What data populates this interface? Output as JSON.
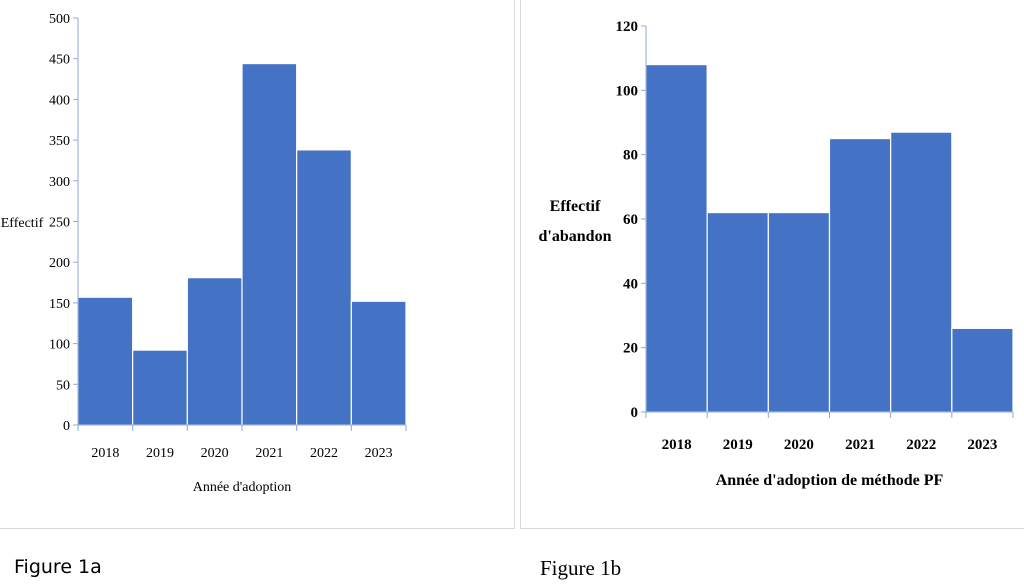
{
  "chart_data": [
    {
      "type": "bar",
      "categories": [
        "2018",
        "2019",
        "2020",
        "2021",
        "2022",
        "2023"
      ],
      "values": [
        157,
        92,
        181,
        444,
        338,
        152
      ],
      "xlabel": "Année d'adoption",
      "ylabel": "Effectif",
      "ylim": [
        0,
        500
      ],
      "yticks": [
        0,
        50,
        100,
        150,
        200,
        250,
        300,
        350,
        400,
        450,
        500
      ],
      "grid": false,
      "bar_color": "#4472c4"
    },
    {
      "type": "bar",
      "categories": [
        "2018",
        "2019",
        "2020",
        "2021",
        "2022",
        "2023"
      ],
      "values": [
        108,
        62,
        62,
        85,
        87,
        26
      ],
      "xlabel": "Année d'adoption de méthode PF",
      "ylabel": [
        "Effectif",
        "d'abandon"
      ],
      "ylim": [
        0,
        120
      ],
      "yticks": [
        0,
        20,
        40,
        60,
        80,
        100,
        120
      ],
      "grid": false,
      "bar_color": "#4472c4"
    }
  ],
  "captions": {
    "a": "Figure 1a",
    "b": "Figure 1b"
  }
}
